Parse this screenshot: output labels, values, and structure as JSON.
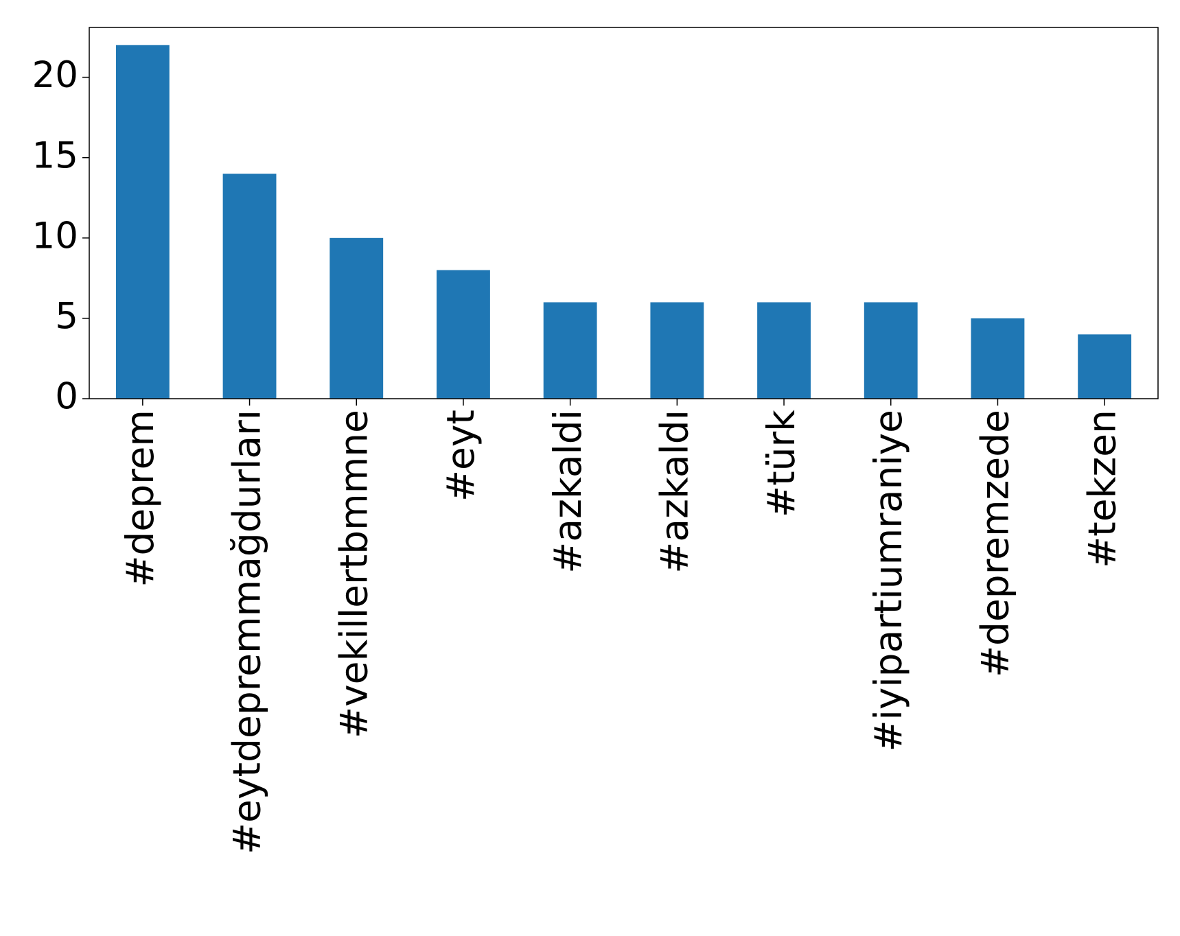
{
  "chart_data": {
    "type": "bar",
    "categories": [
      "#deprem",
      "#eytdepremmağdurları",
      "#vekillertbmmne",
      "#eyt",
      "#azkaldi",
      "#azkaldı",
      "#türk",
      "#iyipartiumraniye",
      "#depremzede",
      "#tekzen"
    ],
    "values": [
      22,
      14,
      10,
      8,
      6,
      6,
      6,
      6,
      5,
      4
    ],
    "color": "#1f77b4",
    "ylim": [
      0,
      23.1
    ],
    "yticks": [
      0,
      5,
      10,
      15,
      20
    ],
    "grid": false
  }
}
